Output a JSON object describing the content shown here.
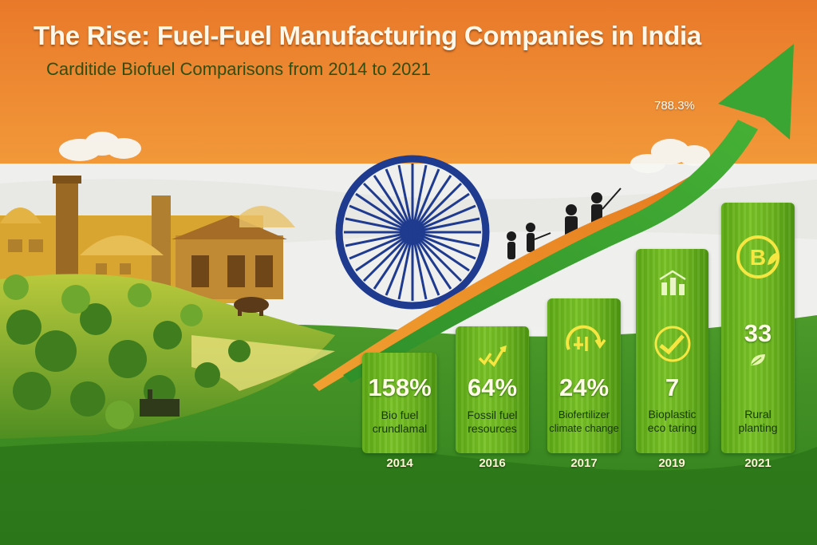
{
  "header": {
    "title": "The Rise: Fuel-Fuel Manufacturing Companies in India",
    "subtitle": "Carditide Biofuel Comparisons from 2014 to 2021"
  },
  "growth_label": "788.3%",
  "colors": {
    "saffron": "#ee8a2c",
    "white_band": "#f1f1ef",
    "india_green": "#3f8f22",
    "bar_green": "#6bb41e",
    "chakra_blue": "#1f3b8f"
  },
  "bars": [
    {
      "value": "158%",
      "label_line1": "Bio fuel",
      "label_line2": "crundlamal",
      "year": "2014",
      "icon": "none"
    },
    {
      "value": "64%",
      "label_line1": "Fossil fuel",
      "label_line2": "resources",
      "year": "2016",
      "icon": "growth-checks-icon"
    },
    {
      "value": "24%",
      "label_line1": "Biofertilizer",
      "label_line2": "climate change",
      "year": "2017",
      "icon": "cycle-icon"
    },
    {
      "value": "7",
      "label_line1": "Bioplastic",
      "label_line2": "eco taring",
      "year": "2019",
      "icon": "check-growth-icon"
    },
    {
      "value": "33",
      "label_line1": "Rural",
      "label_line2": "planting",
      "year": "2021",
      "icon": "bitcoin-leaf-icon"
    }
  ]
}
